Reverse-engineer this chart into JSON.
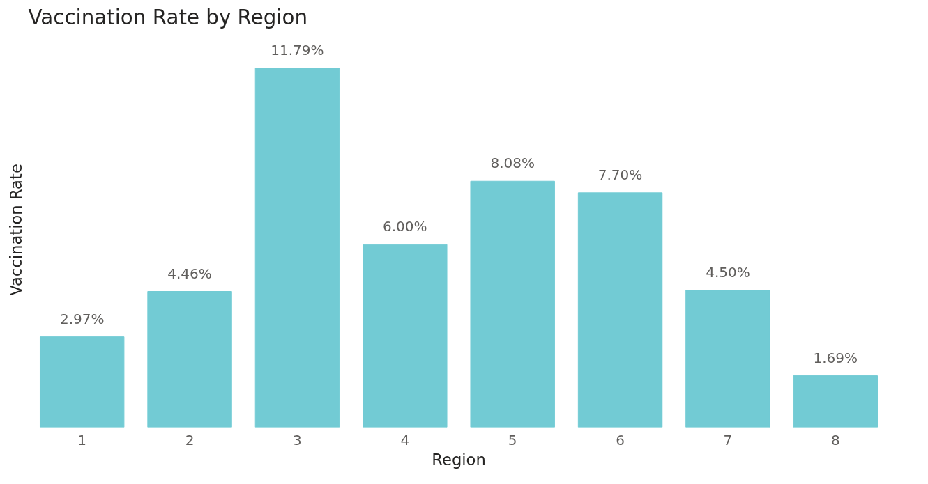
{
  "chart_data": {
    "type": "bar",
    "title": "Vaccination Rate by Region",
    "xlabel": "Region",
    "ylabel": "Vaccination Rate",
    "categories": [
      "1",
      "2",
      "3",
      "4",
      "5",
      "6",
      "7",
      "8"
    ],
    "values": [
      2.97,
      4.46,
      11.79,
      6.0,
      8.08,
      7.7,
      4.5,
      1.69
    ],
    "value_labels": [
      "2.97%",
      "4.46%",
      "11.79%",
      "6.00%",
      "8.08%",
      "7.70%",
      "4.50%",
      "1.69%"
    ],
    "color": "#72cbd4",
    "grid": false
  }
}
